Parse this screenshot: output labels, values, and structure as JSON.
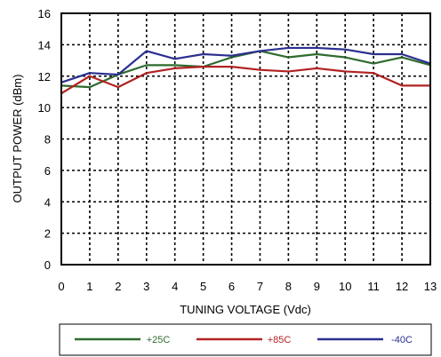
{
  "chart_data": {
    "type": "line",
    "xlabel": "TUNING VOLTAGE (Vdc)",
    "ylabel": "OUTPUT POWER (dBm)",
    "xlim": [
      0,
      13
    ],
    "ylim": [
      0,
      16
    ],
    "xticks": [
      "0",
      "1",
      "2",
      "3",
      "4",
      "5",
      "6",
      "7",
      "8",
      "9",
      "10",
      "11",
      "12",
      "13"
    ],
    "yticks": [
      "0",
      "2",
      "4",
      "6",
      "8",
      "10",
      "12",
      "14",
      "16"
    ],
    "grid": true,
    "legend_position": "bottom",
    "x": [
      0,
      1,
      2,
      3,
      4,
      5,
      6,
      7,
      8,
      9,
      10,
      11,
      12,
      13
    ],
    "series": [
      {
        "name": "+25C",
        "color": "#2e6b2e",
        "values": [
          11.4,
          11.3,
          12.1,
          12.7,
          12.7,
          12.6,
          13.2,
          13.6,
          13.2,
          13.4,
          13.2,
          12.8,
          13.2,
          12.7
        ]
      },
      {
        "name": "+85C",
        "color": "#b22222",
        "values": [
          10.9,
          12.0,
          11.3,
          12.2,
          12.5,
          12.6,
          12.6,
          12.4,
          12.3,
          12.5,
          12.3,
          12.2,
          11.4,
          11.4
        ]
      },
      {
        "name": "-40C",
        "color": "#2b2f8f",
        "values": [
          11.6,
          12.2,
          12.1,
          13.6,
          13.1,
          13.4,
          13.3,
          13.6,
          13.8,
          13.8,
          13.7,
          13.4,
          13.4,
          12.8
        ]
      }
    ]
  }
}
